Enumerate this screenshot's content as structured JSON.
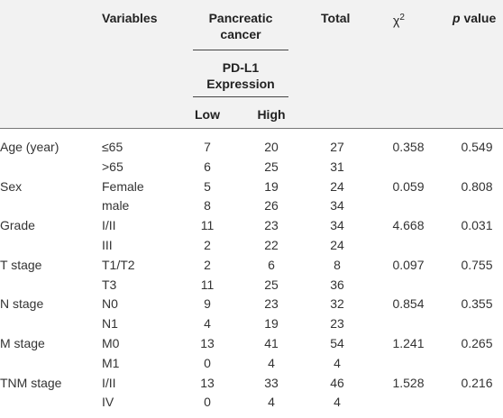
{
  "header": {
    "variables": "Variables",
    "group_line1": "Pancreatic",
    "group_line2": "cancer",
    "subgroup_line1": "PD-L1",
    "subgroup_line2": "Expression",
    "low": "Low",
    "high": "High",
    "total": "Total",
    "chi_symbol": "χ",
    "chi_exp": "2",
    "p_italic": "p",
    "p_rest": " value"
  },
  "rows": [
    {
      "label": "Age (year)",
      "sub": "≤65",
      "low": "7",
      "high": "20",
      "total": "27",
      "chi": "0.358",
      "p": "0.549"
    },
    {
      "label": "",
      "sub": ">65",
      "low": "6",
      "high": "25",
      "total": "31",
      "chi": "",
      "p": ""
    },
    {
      "label": "Sex",
      "sub": "Female",
      "low": "5",
      "high": "19",
      "total": "24",
      "chi": "0.059",
      "p": "0.808"
    },
    {
      "label": "",
      "sub": "male",
      "low": "8",
      "high": "26",
      "total": "34",
      "chi": "",
      "p": ""
    },
    {
      "label": "Grade",
      "sub": "I/II",
      "low": "11",
      "high": "23",
      "total": "34",
      "chi": "4.668",
      "p": "0.031"
    },
    {
      "label": "",
      "sub": "III",
      "low": "2",
      "high": "22",
      "total": "24",
      "chi": "",
      "p": ""
    },
    {
      "label": "T stage",
      "sub": "T1/T2",
      "low": "2",
      "high": "6",
      "total": "8",
      "chi": "0.097",
      "p": "0.755"
    },
    {
      "label": "",
      "sub": "T3",
      "low": "11",
      "high": "25",
      "total": "36",
      "chi": "",
      "p": ""
    },
    {
      "label": "N stage",
      "sub": "N0",
      "low": "9",
      "high": "23",
      "total": "32",
      "chi": "0.854",
      "p": "0.355"
    },
    {
      "label": "",
      "sub": "N1",
      "low": "4",
      "high": "19",
      "total": "23",
      "chi": "",
      "p": ""
    },
    {
      "label": "M stage",
      "sub": "M0",
      "low": "13",
      "high": "41",
      "total": "54",
      "chi": "1.241",
      "p": "0.265"
    },
    {
      "label": "",
      "sub": "M1",
      "low": "0",
      "high": "4",
      "total": "4",
      "chi": "",
      "p": ""
    },
    {
      "label": "TNM stage",
      "sub": "I/II",
      "low": "13",
      "high": "33",
      "total": "46",
      "chi": "1.528",
      "p": "0.216"
    },
    {
      "label": "",
      "sub": "IV",
      "low": "0",
      "high": "4",
      "total": "4",
      "chi": "",
      "p": ""
    }
  ]
}
